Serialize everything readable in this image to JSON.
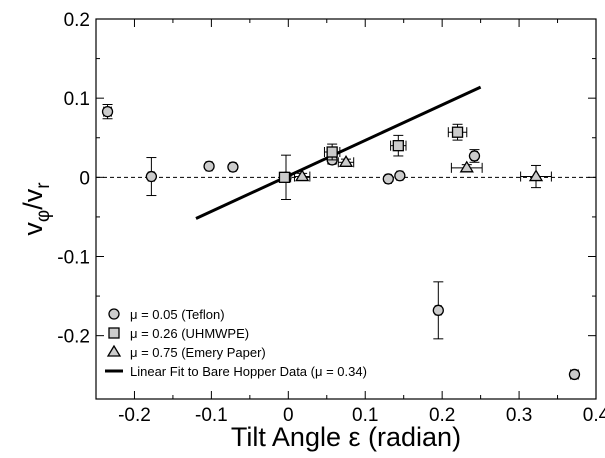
{
  "chart_data": {
    "type": "scatter",
    "xlabel": "Tilt Angle ε (radian)",
    "ylabel": {
      "v1": "v",
      "sub1": "φ",
      "slash": "/",
      "v2": "v",
      "sub2": "r"
    },
    "xlim": [
      -0.25,
      0.4
    ],
    "ylim": [
      -0.28,
      0.2
    ],
    "x_ticks": [
      -0.2,
      -0.1,
      0,
      0.1,
      0.2,
      0.3,
      0.4
    ],
    "x_tick_labels": [
      "-0.2",
      "-0.1",
      "0",
      "0.1",
      "0.2",
      "0.3",
      "0.4"
    ],
    "y_ticks": [
      -0.2,
      -0.1,
      0,
      0.1,
      0.2
    ],
    "y_tick_labels": [
      "-0.2",
      "-0.1",
      "0",
      "0.1",
      "0.2"
    ],
    "grid": false,
    "zero_line": {
      "y": 0,
      "style": "dashed"
    },
    "legend_position": "bottom-left",
    "series": [
      {
        "name": "μ = 0.05 (Teflon)",
        "marker": "circle",
        "points": [
          {
            "x": -0.235,
            "y": 0.083,
            "yerr": 0.009,
            "xerr": 0.005
          },
          {
            "x": -0.178,
            "y": 0.001,
            "yerr": 0.024,
            "xerr": 0.004
          },
          {
            "x": -0.103,
            "y": 0.014,
            "yerr": 0.003,
            "xerr": 0.004
          },
          {
            "x": -0.072,
            "y": 0.013,
            "yerr": 0.003,
            "xerr": 0.004
          },
          {
            "x": -0.003,
            "y": 0.0,
            "yerr": 0.028,
            "xerr": 0.006
          },
          {
            "x": 0.057,
            "y": 0.022,
            "yerr": 0.005,
            "xerr": 0.004
          },
          {
            "x": 0.13,
            "y": -0.002,
            "yerr": 0.003,
            "xerr": 0.004
          },
          {
            "x": 0.145,
            "y": 0.002,
            "yerr": 0.003,
            "xerr": 0.004
          },
          {
            "x": 0.195,
            "y": -0.168,
            "yerr": 0.036,
            "xerr": 0.004
          },
          {
            "x": 0.242,
            "y": 0.027,
            "yerr": 0.008,
            "xerr": 0.004
          },
          {
            "x": 0.372,
            "y": -0.249,
            "yerr": 0.003,
            "xerr": 0.005
          }
        ]
      },
      {
        "name": "μ = 0.26 (UHMWPE)",
        "marker": "square",
        "points": [
          {
            "x": -0.005,
            "y": 0.0,
            "yerr": 0.005,
            "xerr": 0.004
          },
          {
            "x": 0.057,
            "y": 0.032,
            "yerr": 0.01,
            "xerr": 0.01
          },
          {
            "x": 0.143,
            "y": 0.04,
            "yerr": 0.013,
            "xerr": 0.01
          },
          {
            "x": 0.22,
            "y": 0.057,
            "yerr": 0.01,
            "xerr": 0.012
          }
        ]
      },
      {
        "name": "μ = 0.75 (Emery Paper)",
        "marker": "triangle",
        "points": [
          {
            "x": 0.018,
            "y": 0.001,
            "yerr": 0.004,
            "xerr": 0.01
          },
          {
            "x": 0.075,
            "y": 0.019,
            "yerr": 0.004,
            "xerr": 0.01
          },
          {
            "x": 0.232,
            "y": 0.012,
            "yerr": 0.004,
            "xerr": 0.02
          },
          {
            "x": 0.322,
            "y": 0.001,
            "yerr": 0.014,
            "xerr": 0.02
          }
        ]
      }
    ],
    "fit_line": {
      "name": "Linear Fit to Bare Hopper Data (μ = 0.34)",
      "points": [
        {
          "x": -0.12,
          "y": -0.052
        },
        {
          "x": 0.25,
          "y": 0.114
        }
      ]
    }
  }
}
